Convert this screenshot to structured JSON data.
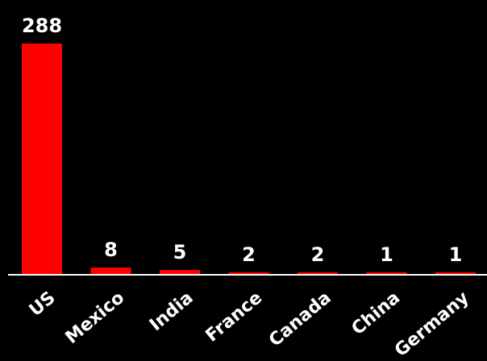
{
  "chart_data": {
    "type": "bar",
    "categories": [
      "US",
      "Mexico",
      "India",
      "France",
      "Canada",
      "China",
      "Germany"
    ],
    "values": [
      288,
      8,
      5,
      2,
      2,
      1,
      1
    ],
    "title": "",
    "xlabel": "",
    "ylabel": "",
    "ylim": [
      0,
      288
    ],
    "grid": false,
    "legend": "none",
    "colors": {
      "bar": "#ff0000",
      "background": "#000000",
      "text": "#ffffff",
      "axis": "#ffffff"
    }
  }
}
